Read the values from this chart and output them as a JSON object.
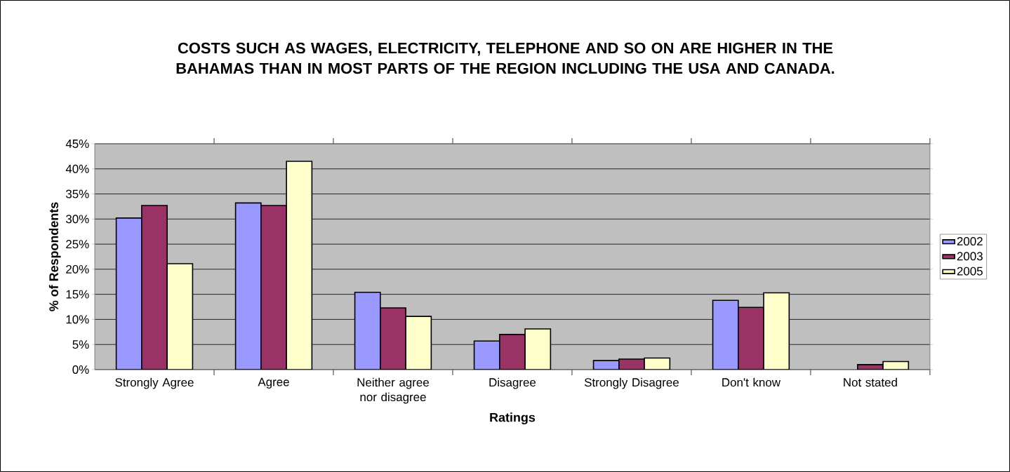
{
  "chart_data": {
    "type": "bar",
    "title": "COSTS SUCH AS WAGES, ELECTRICITY, TELEPHONE AND SO ON ARE HIGHER IN THE BAHAMAS THAN IN MOST PARTS OF THE REGION INCLUDING THE USA AND CANADA.",
    "xlabel": "Ratings",
    "ylabel": "% of Respondents",
    "categories": [
      "Strongly Agree",
      "Agree",
      "Neither agree nor disagree",
      "Disagree",
      "Strongly Disagree",
      "Don't know",
      "Not stated"
    ],
    "series": [
      {
        "name": "2002",
        "color": "#9999ff",
        "values": [
          30.2,
          33.2,
          15.4,
          5.7,
          1.8,
          13.8,
          null
        ]
      },
      {
        "name": "2003",
        "color": "#993366",
        "values": [
          32.7,
          32.7,
          12.3,
          7.0,
          2.1,
          12.4,
          1.0
        ]
      },
      {
        "name": "2005",
        "color": "#ffffcc",
        "values": [
          21.1,
          41.5,
          10.6,
          8.1,
          2.3,
          15.3,
          1.6
        ]
      }
    ],
    "ylim": [
      0,
      45
    ],
    "yticks": [
      {
        "value": 0,
        "label": "0%"
      },
      {
        "value": 5,
        "label": "5%"
      },
      {
        "value": 10,
        "label": "10%"
      },
      {
        "value": 15,
        "label": "15%"
      },
      {
        "value": 20,
        "label": "20%"
      },
      {
        "value": 25,
        "label": "25%"
      },
      {
        "value": 30,
        "label": "30%"
      },
      {
        "value": 35,
        "label": "35%"
      },
      {
        "value": 40,
        "label": "40%"
      },
      {
        "value": 45,
        "label": "45%"
      }
    ],
    "grid": "y",
    "legend": "right"
  }
}
